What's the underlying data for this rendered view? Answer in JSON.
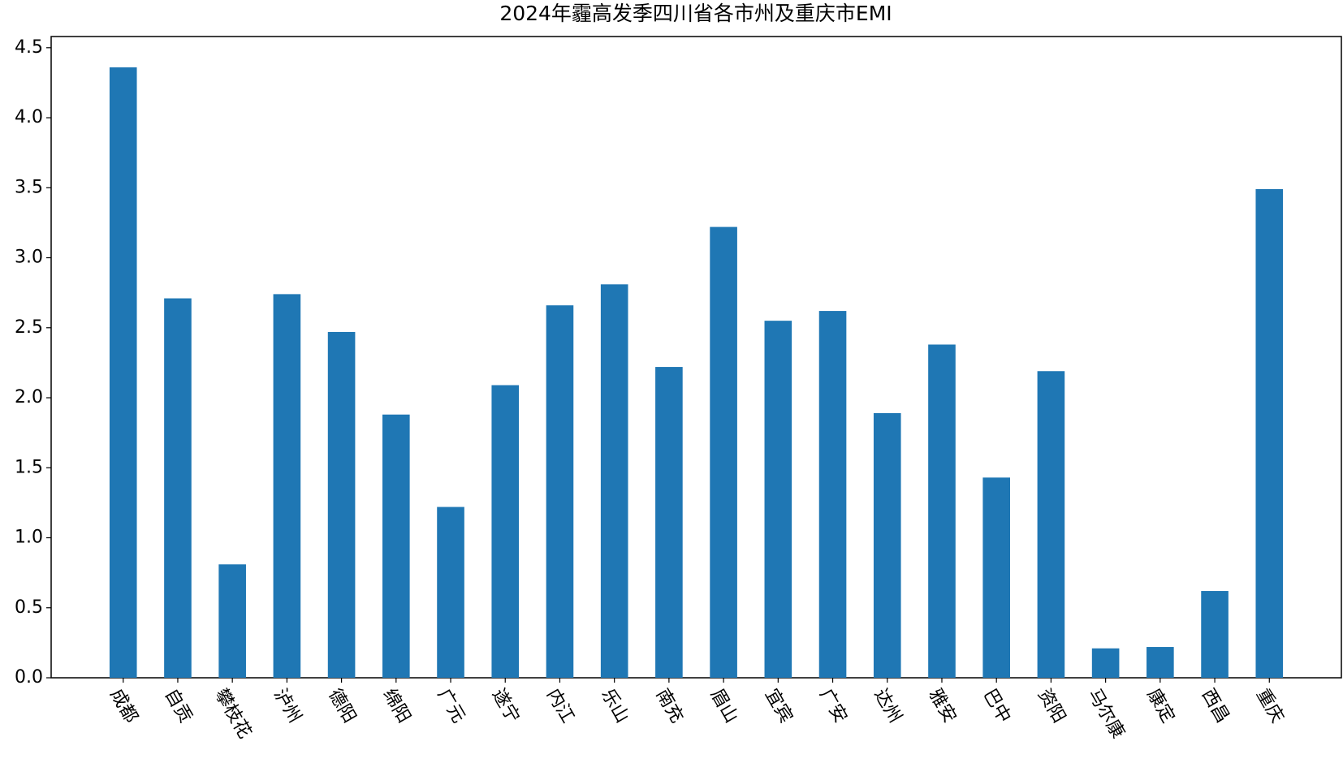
{
  "chart_data": {
    "type": "bar",
    "title": "2024年霾高发季四川省各市州及重庆市EMI",
    "categories": [
      "成都",
      "自贡",
      "攀枝花",
      "泸州",
      "德阳",
      "绵阳",
      "广元",
      "遂宁",
      "内江",
      "乐山",
      "南充",
      "眉山",
      "宜宾",
      "广安",
      "达州",
      "雅安",
      "巴中",
      "资阳",
      "马尔康",
      "康定",
      "西昌",
      "重庆"
    ],
    "values": [
      4.36,
      2.71,
      0.81,
      2.74,
      2.47,
      1.88,
      1.22,
      2.09,
      2.66,
      2.81,
      2.22,
      3.22,
      2.55,
      2.62,
      1.89,
      2.38,
      1.43,
      2.19,
      0.21,
      0.22,
      0.62,
      3.49
    ],
    "color": "#1f77b4",
    "ylim": [
      0,
      4.58
    ],
    "yticks": [
      {
        "value": 0,
        "label": "0.0"
      },
      0.5,
      {
        "value": 1,
        "label": "1.0"
      },
      1.5,
      {
        "value": 2,
        "label": "2.0"
      },
      2.5,
      {
        "value": 3,
        "label": "3.0"
      },
      3.5,
      {
        "value": 4,
        "label": "4.0"
      },
      4.5
    ],
    "grid": false
  }
}
